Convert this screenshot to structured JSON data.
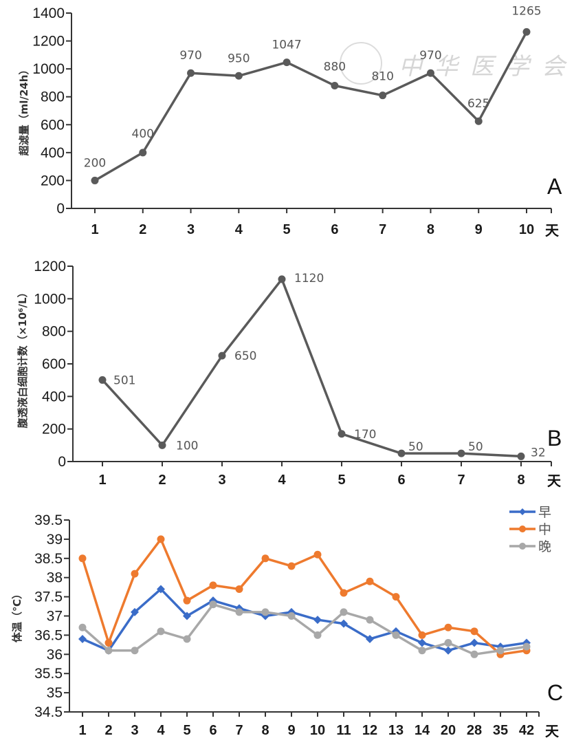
{
  "chart_data": [
    {
      "id": "A",
      "type": "line",
      "panel_letter": "A",
      "ylabel": "超滤量（ml/24h）",
      "xunit": "天",
      "x": [
        "1",
        "2",
        "3",
        "4",
        "5",
        "6",
        "7",
        "8",
        "9",
        "10"
      ],
      "y_ticks": [
        "0",
        "200",
        "400",
        "600",
        "800",
        "1000",
        "1200",
        "1400"
      ],
      "ylim": [
        0,
        1400
      ],
      "series": [
        {
          "name": "超滤量",
          "color": "#5a5a5a",
          "marker": "circle",
          "values": [
            200,
            400,
            970,
            950,
            1047,
            880,
            810,
            970,
            625,
            1265
          ],
          "labels": [
            "200",
            "400",
            "970",
            "950",
            "1047",
            "880",
            "810",
            "970",
            "625",
            "1265"
          ]
        }
      ],
      "grid": false,
      "legend": "none",
      "watermark": "中华医学会"
    },
    {
      "id": "B",
      "type": "line",
      "panel_letter": "B",
      "ylabel": "腹透液白细胞计数（×10⁶/L）",
      "xunit": "天",
      "x": [
        "1",
        "2",
        "3",
        "4",
        "5",
        "6",
        "7",
        "8"
      ],
      "y_ticks": [
        "0",
        "200",
        "400",
        "600",
        "800",
        "1000",
        "1200"
      ],
      "ylim": [
        0,
        1200
      ],
      "series": [
        {
          "name": "腹透液白细胞计数",
          "color": "#5a5a5a",
          "marker": "circle",
          "values": [
            501,
            100,
            650,
            1120,
            170,
            50,
            50,
            32
          ],
          "labels": [
            "501",
            "100",
            "650",
            "1120",
            "170",
            "50",
            "50",
            "32"
          ]
        }
      ],
      "grid": false,
      "legend": "none"
    },
    {
      "id": "C",
      "type": "line",
      "panel_letter": "C",
      "ylabel": "体温（℃）",
      "xunit": "天",
      "x": [
        "1",
        "2",
        "3",
        "4",
        "5",
        "6",
        "7",
        "8",
        "9",
        "10",
        "11",
        "12",
        "13",
        "14",
        "20",
        "28",
        "35",
        "42"
      ],
      "y_ticks": [
        "34.5",
        "35",
        "35.5",
        "36",
        "36.5",
        "37",
        "37.5",
        "38",
        "38.5",
        "39",
        "39.5"
      ],
      "ylim": [
        34.5,
        39.5
      ],
      "series": [
        {
          "name": "早",
          "color": "#3a6cc8",
          "marker": "diamond",
          "values": [
            36.4,
            36.1,
            37.1,
            37.7,
            37.0,
            37.4,
            37.2,
            37.0,
            37.1,
            36.9,
            36.8,
            36.4,
            36.6,
            36.3,
            36.1,
            36.3,
            36.2,
            36.3
          ]
        },
        {
          "name": "中",
          "color": "#ee7a2e",
          "marker": "circle",
          "values": [
            38.5,
            36.3,
            38.1,
            39.0,
            37.4,
            37.8,
            37.7,
            38.5,
            38.3,
            38.6,
            37.6,
            37.9,
            37.5,
            36.5,
            36.7,
            36.6,
            36.0,
            36.1
          ]
        },
        {
          "name": "晚",
          "color": "#a8a8a8",
          "marker": "circle",
          "values": [
            36.7,
            36.1,
            36.1,
            36.6,
            36.4,
            37.3,
            37.1,
            37.1,
            37.0,
            36.5,
            37.1,
            36.9,
            36.5,
            36.1,
            36.3,
            36.0,
            36.1,
            36.2
          ]
        }
      ],
      "grid": false,
      "legend": "top-right"
    }
  ]
}
